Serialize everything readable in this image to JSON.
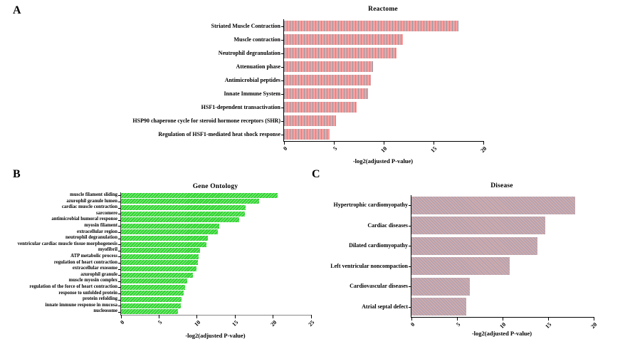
{
  "figure": {
    "background": "#ffffff",
    "panels": [
      {
        "letter": "A"
      },
      {
        "letter": "B"
      },
      {
        "letter": "C"
      }
    ]
  },
  "chart_data": [
    {
      "type": "bar",
      "orientation": "horizontal",
      "panel": "A",
      "title": "Reactome",
      "xlabel": "-log2(adjusted P-value)",
      "xlim": [
        0,
        20
      ],
      "xticks": [
        0,
        5,
        10,
        15,
        20
      ],
      "grid": false,
      "legend": "none",
      "categories": [
        "Striated Muscle Contraction",
        "Muscle contraction",
        "Neutrophil degranulation",
        "Attenuation phase",
        "Antimicrobial peptides",
        "Innate Immune System",
        "HSF1-dependent transactivation",
        "HSP90 chaperone cycle for steroid hormone receptors (SHR)",
        "Regulation of HSF1-mediated heat shock response"
      ],
      "values": [
        17.5,
        11.9,
        11.3,
        8.9,
        8.7,
        8.4,
        7.3,
        5.2,
        4.6
      ],
      "bar_color": "#f79f9f",
      "hatch": "vertical",
      "hatch_color": "#8e9ba4",
      "hatch_period": 4
    },
    {
      "type": "bar",
      "orientation": "horizontal",
      "panel": "B",
      "title": "Gene Ontology",
      "xlabel": "-log2(adjusted P-value)",
      "xlim": [
        0,
        25
      ],
      "xticks": [
        0,
        5,
        10,
        15,
        20,
        25
      ],
      "grid": false,
      "legend": "none",
      "categories": [
        "muscle filament sliding",
        "azurophil granule lumen",
        "cardiac muscle contraction",
        "sarcomere",
        "antimicrobial humoral response",
        "myosin filament",
        "extracellular region",
        "neutrophil degranulation",
        "ventricular cardiac muscle tissue morphogenesis",
        "myofibril",
        "ATP metabolic process",
        "regulation of heart contraction",
        "extracellular exosome",
        "azurophil granule",
        "muscle myosin complex",
        "regulation of the force of heart contraction",
        "response to unfolded protein",
        "protein refolding",
        "innate immune response in mucosa",
        "nucleosome"
      ],
      "values": [
        20.6,
        18.2,
        16.4,
        16.3,
        15.5,
        12.9,
        12.7,
        11.4,
        11.2,
        10.4,
        10.2,
        10.1,
        9.9,
        9.5,
        8.7,
        8.4,
        8.2,
        8.0,
        7.9,
        7.5
      ],
      "bar_color": "#2fd32f",
      "hatch": "diagonal-up",
      "hatch_color": "#8ceb8c",
      "hatch_period": 3
    },
    {
      "type": "bar",
      "orientation": "horizontal",
      "panel": "C",
      "title": "Disease",
      "xlabel": "-log2(adjusted P-value)",
      "xlim": [
        0,
        20
      ],
      "xticks": [
        0,
        5,
        10,
        15,
        20
      ],
      "grid": false,
      "legend": "none",
      "categories": [
        "Hypertrophic cardiomyopathy",
        "Cardiac diseases",
        "Dilated cardiomyopathy",
        "Left ventricular noncompaction",
        "Cardiovascular diseases",
        "Atrial septal defect"
      ],
      "values": [
        18.0,
        14.7,
        13.8,
        10.8,
        6.4,
        6.0
      ],
      "bar_color": "#d0abab",
      "hatch": "diagonal-down",
      "hatch_color": "#a79fb5",
      "hatch_period": 3
    }
  ]
}
